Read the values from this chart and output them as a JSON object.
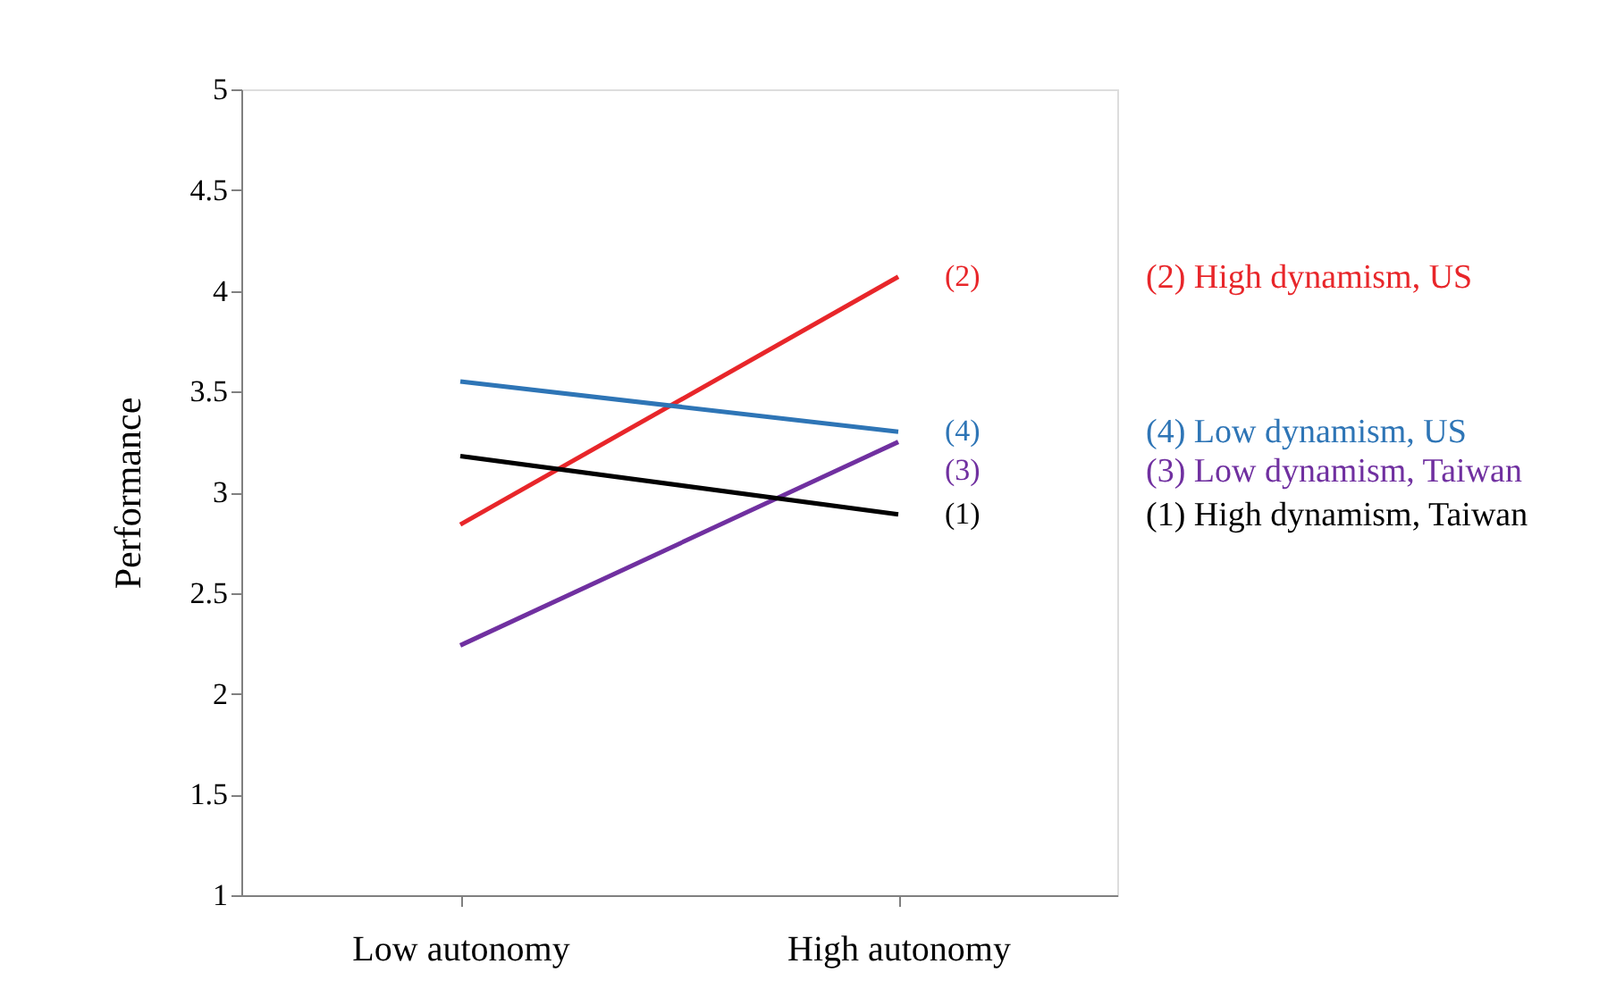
{
  "chart_data": {
    "type": "line",
    "ylabel": "Performance",
    "categories": [
      "Low autonomy",
      "High autonomy"
    ],
    "series": [
      {
        "name": "(2) High dynamism, US",
        "color": "#e8262a",
        "values": [
          2.84,
          4.07
        ]
      },
      {
        "name": "(4) Low dynamism, US",
        "color": "#2e75b6",
        "values": [
          3.55,
          3.3
        ]
      },
      {
        "name": "(3) Low dynamism, Taiwan",
        "color": "#7030a0",
        "values": [
          2.24,
          3.25
        ]
      },
      {
        "name": "(1) High dynamism, Taiwan",
        "color": "#000000",
        "values": [
          3.18,
          2.89
        ]
      }
    ],
    "annotations": [
      {
        "text": "(2)",
        "x": "High autonomy",
        "y": 4.07
      },
      {
        "text": "(4)",
        "x": "High autonomy",
        "y": 3.3
      },
      {
        "text": "(3)",
        "x": "High autonomy",
        "y": 3.25
      },
      {
        "text": "(1)",
        "x": "High autonomy",
        "y": 2.89
      }
    ],
    "ylim": [
      1,
      5
    ],
    "yticks": [
      1,
      1.5,
      2,
      2.5,
      3,
      3.5,
      4,
      4.5,
      5
    ],
    "grid": false,
    "legend": "right",
    "marker": "none",
    "line_style": "solid"
  }
}
